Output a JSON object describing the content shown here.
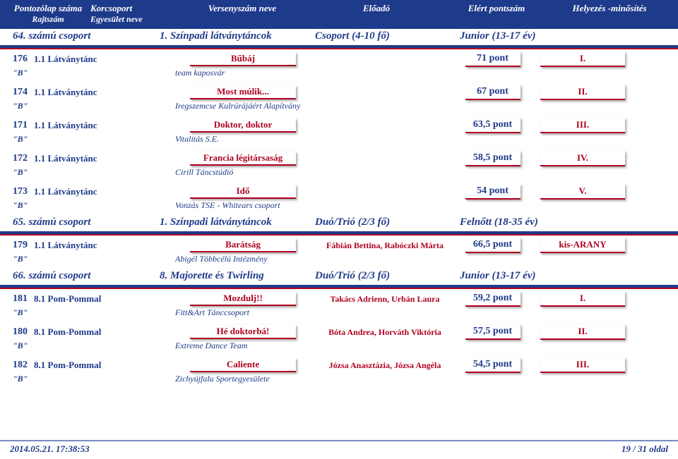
{
  "colors": {
    "primary": "#1e3a8a",
    "accent": "#b00020",
    "background": "#ffffff",
    "footer_divider": "#7a8bbf",
    "shadow": "rgba(0,0,0,0.35)"
  },
  "typography": {
    "font_family": "Times New Roman, serif",
    "body_size_pt": 10,
    "header_size_pt": 10,
    "group_size_pt": 11,
    "entry_size_pt": 10
  },
  "header": {
    "line1": {
      "col_a": "Pontozólap száma",
      "col_b": "Korcsoport",
      "col_c": "Versenyszám neve",
      "col_d": "Előadó",
      "col_e": "Elért pontszám",
      "col_f": "Helyezés -minősítés"
    },
    "line2": {
      "col_a": "Rajtszám",
      "col_b": "Egyesület neve"
    }
  },
  "groups": [
    {
      "num_label": "64. számú csoport",
      "category": "1. Színpadi látványtáncok",
      "subgroup": "Csoport (4-10 fő)",
      "age": "Junior (13-17 év)",
      "entries": [
        {
          "num": "176",
          "cat": "1.1 Látványtánc",
          "title": "Bűbáj",
          "perf": "",
          "score": "71 pont",
          "place": "I.",
          "b": "\"B\"",
          "team": "team kaposvár"
        },
        {
          "num": "174",
          "cat": "1.1 Látványtánc",
          "title": "Most múlik...",
          "perf": "",
          "score": "67 pont",
          "place": "II.",
          "b": "\"B\"",
          "team": "Iregszemcse Kulrúrájáért Alapítvány"
        },
        {
          "num": "171",
          "cat": "1.1 Látványtánc",
          "title": "Doktor, doktor",
          "perf": "",
          "score": "63,5 pont",
          "place": "III.",
          "b": "\"B\"",
          "team": "Vitalitás S.E."
        },
        {
          "num": "172",
          "cat": "1.1 Látványtánc",
          "title": "Francia légitársaság",
          "perf": "",
          "score": "58,5 pont",
          "place": "IV.",
          "b": "\"B\"",
          "team": "Cirill Táncstúdió"
        },
        {
          "num": "173",
          "cat": "1.1 Látványtánc",
          "title": "Idő",
          "perf": "",
          "score": "54 pont",
          "place": "V.",
          "b": "\"B\"",
          "team": "Vonzás TSE - Whitears csoport"
        }
      ]
    },
    {
      "num_label": "65. számú csoport",
      "category": "1. Színpadi látványtáncok",
      "subgroup": "Duó/Trió (2/3 fő)",
      "age": "Felnőtt (18-35 év)",
      "entries": [
        {
          "num": "179",
          "cat": "1.1 Látványtánc",
          "title": "Barátság",
          "perf": "Fábián Bettina, Rabóczki Márta",
          "score": "66,5 pont",
          "place": "kis-ARANY",
          "b": "\"B\"",
          "team": "Abigél Többcélú Intézmény"
        }
      ]
    },
    {
      "num_label": "66. számú csoport",
      "category": "8. Majorette és Twirling",
      "subgroup": "Duó/Trió (2/3 fő)",
      "age": "Junior (13-17 év)",
      "entries": [
        {
          "num": "181",
          "cat": "8.1 Pom-Pommal",
          "title": "Mozdulj!!",
          "perf": "Takács Adrienn, Urbán Laura",
          "score": "59,2 pont",
          "place": "I.",
          "b": "\"B\"",
          "team": "Fitt&Art Tánccsoport"
        },
        {
          "num": "180",
          "cat": "8.1 Pom-Pommal",
          "title": "Hé doktorbá!",
          "perf": "Bóta Andrea, Horváth Viktória",
          "score": "57,5 pont",
          "place": "II.",
          "b": "\"B\"",
          "team": "Extreme Dance Team"
        },
        {
          "num": "182",
          "cat": "8.1 Pom-Pommal",
          "title": "Caliente",
          "perf": "Józsa Anasztázia, Józsa Angéla",
          "score": "54,5 pont",
          "place": "III.",
          "b": "\"B\"",
          "team": "Zichyújfalu Sportegyesülete"
        }
      ]
    }
  ],
  "footer": {
    "timestamp": "2014.05.21. 17:38:53",
    "page": "19 / 31 oldal"
  }
}
